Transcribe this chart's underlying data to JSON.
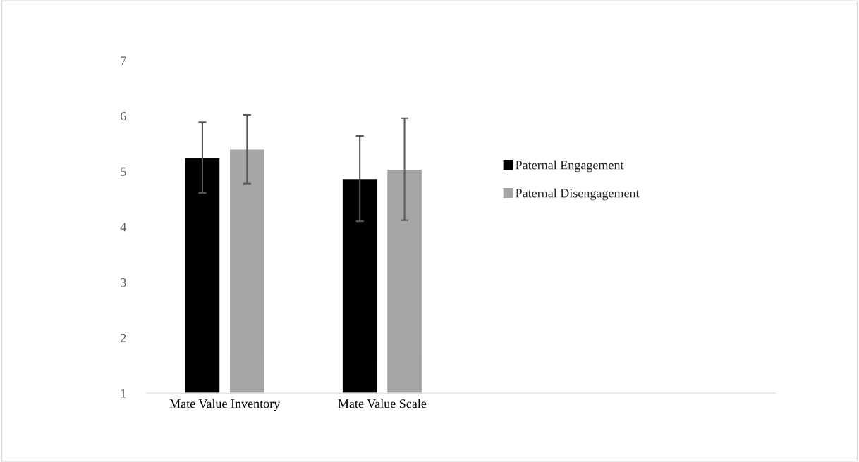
{
  "chart_data": {
    "type": "bar",
    "categories": [
      "Mate Value Inventory",
      "Mate Value Scale",
      null,
      null
    ],
    "series": [
      {
        "name": "Paternal Engagement",
        "color": "#000000",
        "values": [
          5.25,
          4.87,
          null,
          null
        ],
        "errors": [
          0.64,
          0.77,
          null,
          null
        ]
      },
      {
        "name": "Paternal Disengagement",
        "color": "#a5a5a5",
        "values": [
          5.4,
          5.04,
          null,
          null
        ],
        "errors": [
          0.62,
          0.92,
          null,
          null
        ]
      }
    ],
    "ylim": [
      1,
      7
    ],
    "yticks": [
      1,
      2,
      3,
      4,
      5,
      6,
      7
    ],
    "grid": false,
    "legend": "right"
  }
}
